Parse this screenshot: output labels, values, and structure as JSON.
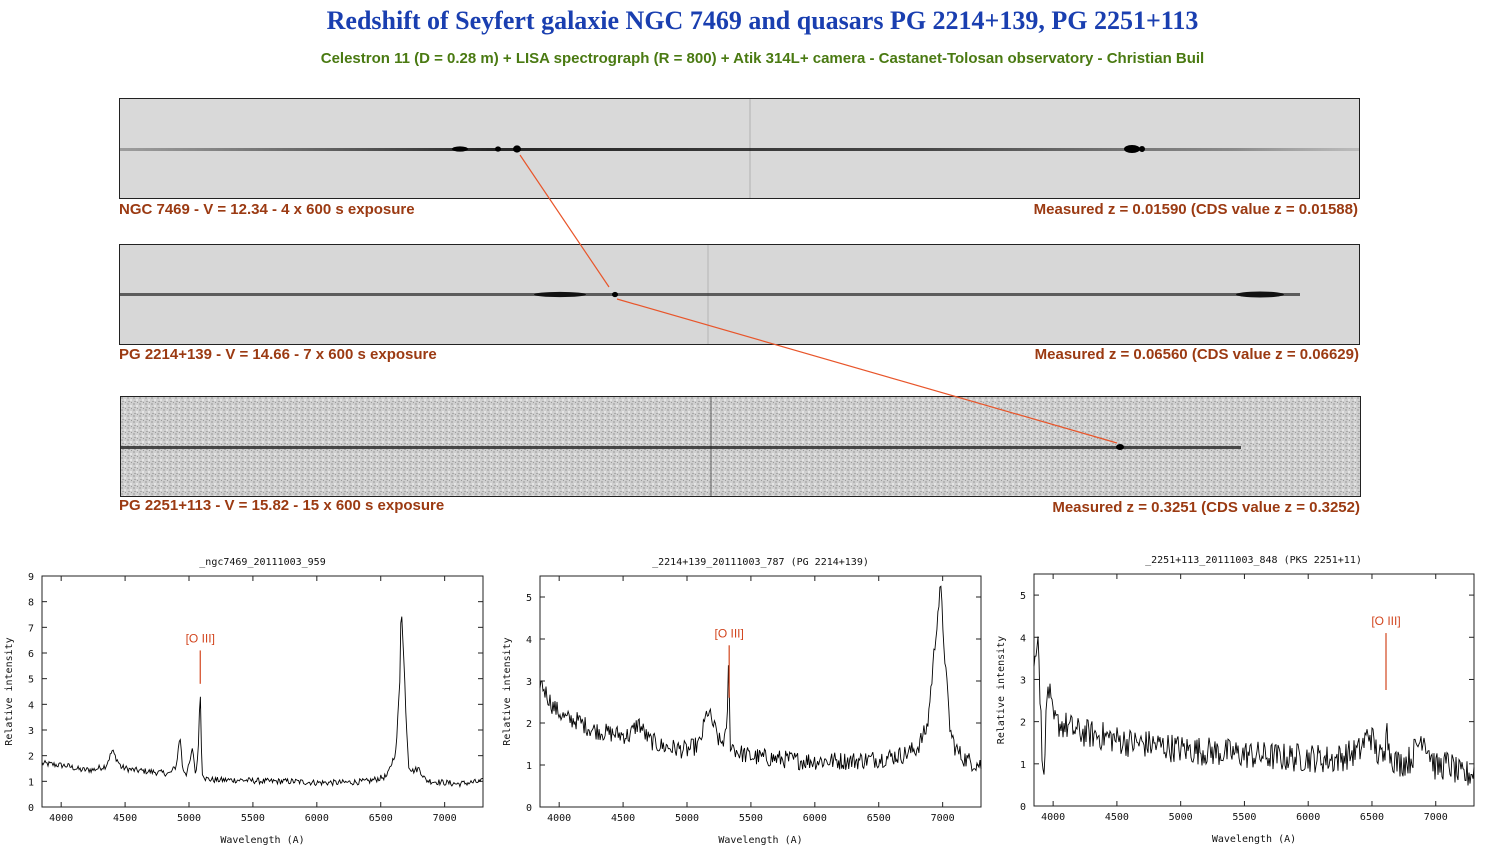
{
  "page": {
    "title": "Redshift of Seyfert galaxie NGC 7469 and quasars PG 2214+139, PG 2251+113",
    "subtitle": "Celestron 11 (D = 0.28 m) + LISA spectrograph (R = 800) + Atik 314L+ camera - Castanet-Tolosan observatory - Christian Buil"
  },
  "strips": [
    {
      "caption_left": "NGC 7469  -  V = 12.34  -  4 x 600 s exposure",
      "caption_right": "Measured z = 0.01590  (CDS value z = 0.01588)"
    },
    {
      "caption_left": "PG 2214+139  -  V = 14.66  -  7 x 600 s exposure",
      "caption_right": "Measured z = 0.06560  (CDS value z = 0.06629)"
    },
    {
      "caption_left": "PG 2251+113  -  V = 15.82  -  15 x 600 s exposure",
      "caption_right": "Measured z = 0.3251  (CDS value z = 0.3252)"
    }
  ],
  "colors": {
    "title": "#1a3fb0",
    "subtitle": "#4a7a12",
    "caption": "#9b3a12",
    "connector": "#e8552a",
    "annotation": "#d2451e"
  },
  "chart_data": [
    {
      "type": "line",
      "title": "_ngc7469_20111003_959",
      "xlabel": "Wavelength (A)",
      "ylabel": "Relative intensity",
      "xlim": [
        3850,
        7300
      ],
      "ylim": [
        0,
        9
      ],
      "xticks": [
        4000,
        4500,
        5000,
        5500,
        6000,
        6500,
        7000
      ],
      "yticks": [
        0,
        1,
        2,
        3,
        4,
        5,
        6,
        7,
        8,
        9
      ],
      "annotation": {
        "label": "[O III]",
        "x": 5088,
        "y_top": 6.1,
        "y_bottom": 4.8
      },
      "x": [
        3850,
        3950,
        4050,
        4150,
        4250,
        4350,
        4400,
        4430,
        4470,
        4550,
        4650,
        4750,
        4850,
        4900,
        4930,
        4950,
        4980,
        5000,
        5030,
        5050,
        5070,
        5085,
        5090,
        5100,
        5130,
        5200,
        5400,
        5600,
        5800,
        6000,
        6200,
        6400,
        6550,
        6620,
        6650,
        6660,
        6670,
        6685,
        6700,
        6720,
        6750,
        6800,
        6850,
        6900,
        7000,
        7100,
        7200,
        7300
      ],
      "y": [
        1.7,
        1.65,
        1.6,
        1.45,
        1.45,
        1.6,
        2.2,
        1.9,
        1.55,
        1.45,
        1.4,
        1.35,
        1.3,
        1.6,
        2.8,
        1.5,
        1.3,
        1.6,
        2.3,
        1.3,
        1.9,
        4.5,
        4.2,
        1.4,
        1.1,
        1.05,
        1.05,
        1.0,
        1.0,
        0.95,
        0.95,
        1.0,
        1.2,
        2.2,
        5.0,
        8.2,
        6.8,
        5.3,
        3.3,
        1.6,
        1.4,
        1.5,
        1.05,
        1.0,
        0.95,
        0.9,
        0.95,
        1.0
      ]
    },
    {
      "type": "line",
      "title": "_2214+139_20111003_787 (PG 2214+139)",
      "xlabel": "Wavelength (A)",
      "ylabel": "Relative intensity",
      "xlim": [
        3850,
        7300
      ],
      "ylim": [
        0,
        5.5
      ],
      "xticks": [
        4000,
        4500,
        5000,
        5500,
        6000,
        6500,
        7000
      ],
      "yticks": [
        0,
        1,
        2,
        3,
        4,
        5
      ],
      "annotation": {
        "label": "[O III]",
        "x": 5330,
        "y_top": 3.85,
        "y_bottom": 2.6
      },
      "x": [
        3850,
        3950,
        4050,
        4150,
        4250,
        4400,
        4550,
        4620,
        4700,
        4800,
        4900,
        5000,
        5100,
        5160,
        5200,
        5260,
        5310,
        5325,
        5340,
        5400,
        5500,
        5700,
        5900,
        6100,
        6300,
        6500,
        6700,
        6800,
        6880,
        6920,
        6960,
        6985,
        7000,
        7030,
        7060,
        7100,
        7150,
        7200,
        7300
      ],
      "y": [
        3.0,
        2.4,
        2.1,
        2.05,
        1.85,
        1.75,
        1.7,
        2.0,
        1.6,
        1.45,
        1.4,
        1.35,
        1.5,
        2.3,
        2.0,
        1.5,
        1.7,
        3.35,
        1.5,
        1.3,
        1.2,
        1.15,
        1.1,
        1.1,
        1.1,
        1.15,
        1.25,
        1.4,
        1.9,
        3.2,
        4.6,
        5.2,
        4.4,
        3.0,
        1.8,
        1.4,
        1.2,
        1.1,
        1.0
      ]
    },
    {
      "type": "line",
      "title": "_2251+113_20111003_848 (PKS 2251+11)",
      "xlabel": "Wavelength (A)",
      "ylabel": "Relative intensity",
      "xlim": [
        3850,
        7300
      ],
      "ylim": [
        0,
        5.5
      ],
      "xticks": [
        4000,
        4500,
        5000,
        5500,
        6000,
        6500,
        7000
      ],
      "yticks": [
        0,
        1,
        2,
        3,
        4,
        5
      ],
      "annotation": {
        "label": "[O III]",
        "x": 6610,
        "y_top": 4.1,
        "y_bottom": 2.75
      },
      "x": [
        3850,
        3880,
        3920,
        3960,
        4000,
        4100,
        4200,
        4400,
        4600,
        4800,
        5000,
        5200,
        5400,
        5600,
        5800,
        6000,
        6200,
        6400,
        6480,
        6550,
        6600,
        6615,
        6630,
        6700,
        6800,
        6900,
        7000,
        7100,
        7200,
        7300
      ],
      "y": [
        3.2,
        4.3,
        0.6,
        2.9,
        2.0,
        1.9,
        1.75,
        1.65,
        1.5,
        1.45,
        1.35,
        1.3,
        1.25,
        1.2,
        1.15,
        1.15,
        1.1,
        1.3,
        1.75,
        1.2,
        1.1,
        2.5,
        1.3,
        1.0,
        1.1,
        1.7,
        0.9,
        1.0,
        0.7,
        0.8
      ]
    }
  ]
}
